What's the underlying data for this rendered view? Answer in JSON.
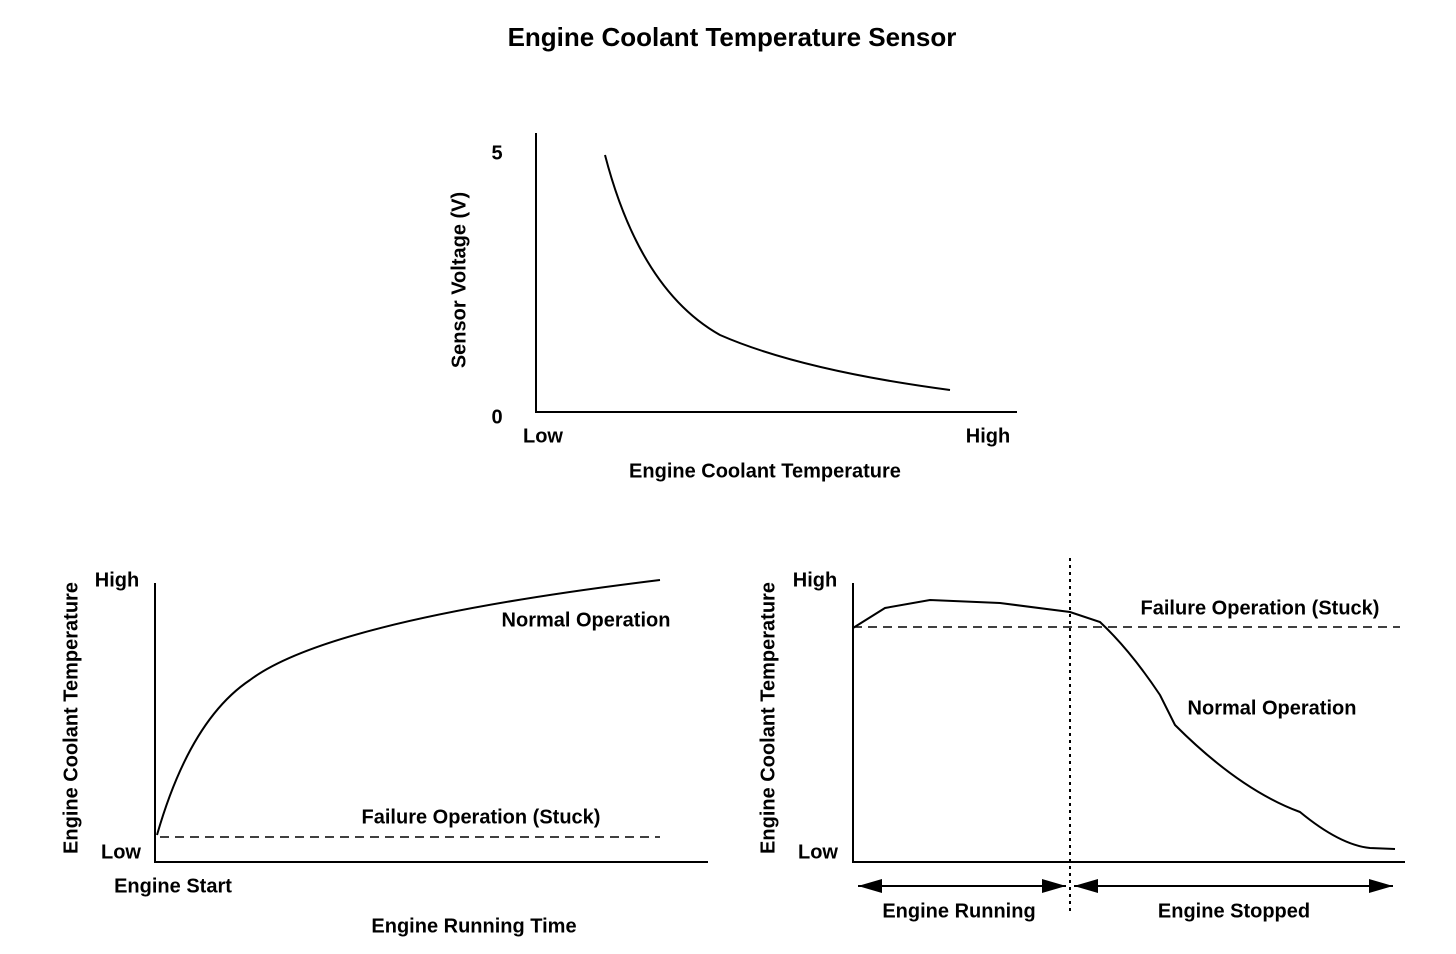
{
  "title": "Engine Coolant Temperature Sensor",
  "top_chart": {
    "y_label": "Sensor Voltage (V)",
    "y_high": "5",
    "y_low": "0",
    "x_low": "Low",
    "x_high": "High",
    "x_label": "Engine Coolant Temperature"
  },
  "left_chart": {
    "y_label": "Engine Coolant Temperature",
    "y_high": "High",
    "y_low": "Low",
    "x_start": "Engine Start",
    "x_label": "Engine Running Time",
    "normal_label": "Normal Operation",
    "failure_label": "Failure Operation (Stuck)"
  },
  "right_chart": {
    "y_label": "Engine Coolant Temperature",
    "y_high": "High",
    "y_low": "Low",
    "failure_label": "Failure Operation (Stuck)",
    "normal_label": "Normal Operation",
    "running_label": "Engine Running",
    "stopped_label": "Engine Stopped"
  }
}
